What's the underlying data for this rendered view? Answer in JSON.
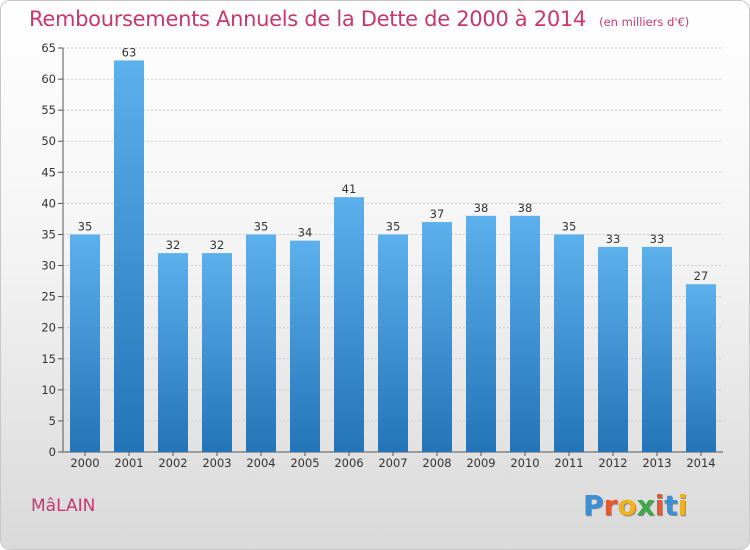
{
  "title": "Remboursements Annuels de la Dette de 2000 à 2014",
  "unit": "(en milliers d'€)",
  "commune": "MâLAIN",
  "logo": {
    "text": "Proxiti",
    "colors": [
      "#3a8fd6",
      "#e8572c",
      "#f2b01e",
      "#3da84a",
      "#e8572c",
      "#3a8fd6",
      "#f2b01e"
    ]
  },
  "colors": {
    "bar_top": "#5cb0ec",
    "bar_bottom": "#2474b8",
    "title": "#c8386f",
    "grid": "#cccccc"
  },
  "chart_data": {
    "type": "bar",
    "categories": [
      "2000",
      "2001",
      "2002",
      "2003",
      "2004",
      "2005",
      "2006",
      "2007",
      "2008",
      "2009",
      "2010",
      "2011",
      "2012",
      "2013",
      "2014"
    ],
    "values": [
      35,
      63,
      32,
      32,
      35,
      34,
      41,
      35,
      37,
      38,
      38,
      35,
      33,
      33,
      27
    ],
    "ylim": [
      0,
      65
    ],
    "yticks": [
      0,
      5,
      10,
      15,
      20,
      25,
      30,
      35,
      40,
      45,
      50,
      55,
      60,
      65
    ],
    "grid": true,
    "title": "Remboursements Annuels de la Dette de 2000 à 2014",
    "xlabel": "",
    "ylabel": ""
  }
}
